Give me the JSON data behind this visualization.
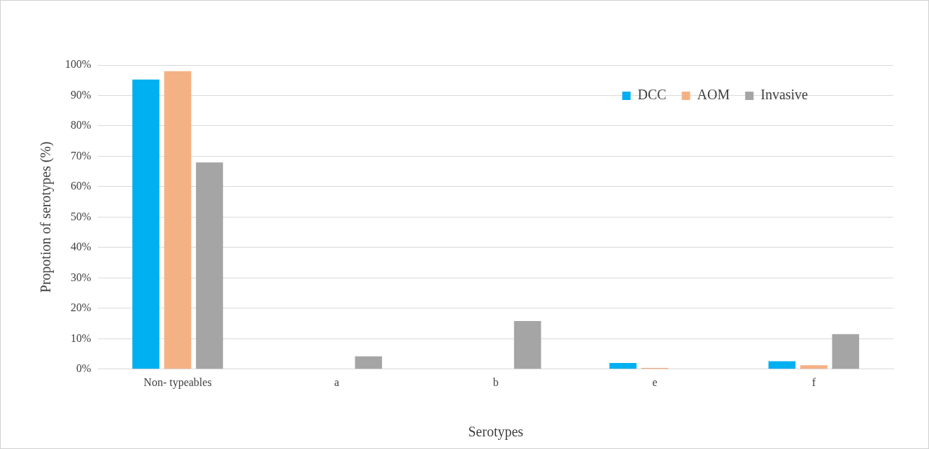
{
  "chart_data": {
    "type": "bar",
    "xlabel": "Serotypes",
    "ylabel": "Propotion of serotypes (%)",
    "categories": [
      "Non- typeables",
      "a",
      "b",
      "e",
      "f"
    ],
    "series": [
      {
        "name": "DCC",
        "color": "#00b0f0",
        "values": [
          95.2,
          0,
          0,
          2.0,
          2.6
        ]
      },
      {
        "name": "AOM",
        "color": "#f4b183",
        "values": [
          98.0,
          0,
          0,
          0.4,
          1.3
        ]
      },
      {
        "name": "Invasive",
        "color": "#a5a5a5",
        "values": [
          68.0,
          4.2,
          15.8,
          0,
          11.5
        ]
      }
    ],
    "ylim": [
      0,
      100
    ],
    "yticks": [
      {
        "value": 0,
        "label": "0%"
      },
      {
        "value": 10,
        "label": "10%"
      },
      {
        "value": 20,
        "label": "20%"
      },
      {
        "value": 30,
        "label": "30%"
      },
      {
        "value": 40,
        "label": "40%"
      },
      {
        "value": 50,
        "label": "50%"
      },
      {
        "value": 60,
        "label": "60%"
      },
      {
        "value": 70,
        "label": "70%"
      },
      {
        "value": 80,
        "label": "80%"
      },
      {
        "value": 90,
        "label": "90%"
      },
      {
        "value": 100,
        "label": "100%"
      }
    ],
    "grid": "y",
    "legend": "top right"
  }
}
